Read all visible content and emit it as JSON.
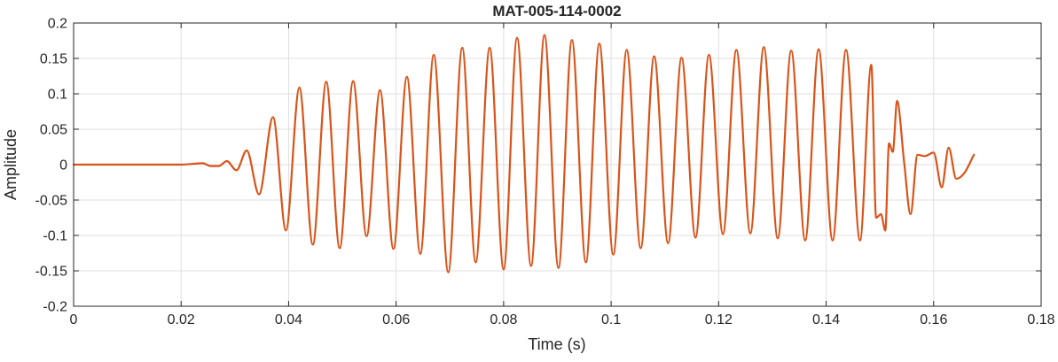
{
  "chart_data": {
    "type": "line",
    "title": "MAT-005-114-0002",
    "xlabel": "Time (s)",
    "ylabel": "Amplitude",
    "xlim": [
      0,
      0.18
    ],
    "ylim": [
      -0.2,
      0.2
    ],
    "xticks": [
      0,
      0.02,
      0.04,
      0.06,
      0.08,
      0.1,
      0.12,
      0.14,
      0.16,
      0.18
    ],
    "xtick_labels": [
      "0",
      "0.02",
      "0.04",
      "0.06",
      "0.08",
      "0.1",
      "0.12",
      "0.14",
      "0.16",
      "0.18"
    ],
    "yticks": [
      -0.2,
      -0.15,
      -0.1,
      -0.05,
      0,
      0.05,
      0.1,
      0.15,
      0.2
    ],
    "ytick_labels": [
      "-0.2",
      "-0.15",
      "-0.1",
      "-0.05",
      "0",
      "0.05",
      "0.1",
      "0.15",
      "0.2"
    ],
    "grid": true,
    "line_color": "#D95319",
    "series": [
      {
        "x": [
          0,
          0.01,
          0.02,
          0.024,
          0.0255,
          0.027,
          0.0285,
          0.0303,
          0.0322,
          0.0345,
          0.0371,
          0.0395,
          0.042,
          0.0445,
          0.047,
          0.0495,
          0.052,
          0.0545,
          0.057,
          0.0595,
          0.062,
          0.0645,
          0.067,
          0.0697,
          0.0723,
          0.0748,
          0.0774,
          0.08,
          0.0825,
          0.0851,
          0.0876,
          0.0902,
          0.0927,
          0.0953,
          0.0978,
          0.1004,
          0.1029,
          0.1055,
          0.108,
          0.1106,
          0.1131,
          0.1157,
          0.1182,
          0.1208,
          0.1233,
          0.1259,
          0.1284,
          0.131,
          0.1335,
          0.1361,
          0.1386,
          0.1412,
          0.1437,
          0.1463,
          0.1484,
          0.1493,
          0.1502,
          0.151,
          0.1517,
          0.1524,
          0.1532,
          0.1545,
          0.1557,
          0.157,
          0.1583,
          0.16,
          0.1615,
          0.1628,
          0.1642,
          0.1657,
          0.1675
        ],
        "y": [
          0,
          0,
          0,
          0.002,
          -0.002,
          -0.002,
          0.005,
          -0.008,
          0.02,
          -0.042,
          0.067,
          -0.093,
          0.109,
          -0.113,
          0.117,
          -0.118,
          0.118,
          -0.101,
          0.105,
          -0.119,
          0.124,
          -0.126,
          0.155,
          -0.152,
          0.165,
          -0.138,
          0.165,
          -0.148,
          0.179,
          -0.143,
          0.183,
          -0.146,
          0.176,
          -0.138,
          0.171,
          -0.127,
          0.162,
          -0.118,
          0.153,
          -0.111,
          0.151,
          -0.103,
          0.155,
          -0.098,
          0.162,
          -0.097,
          0.166,
          -0.104,
          0.161,
          -0.107,
          0.163,
          -0.107,
          0.162,
          -0.107,
          0.141,
          -0.075,
          -0.07,
          -0.093,
          0.03,
          0.018,
          0.09,
          0.004,
          -0.07,
          0.014,
          0.012,
          0.017,
          -0.032,
          0.024,
          -0.02,
          -0.012,
          0.014
        ]
      }
    ]
  }
}
